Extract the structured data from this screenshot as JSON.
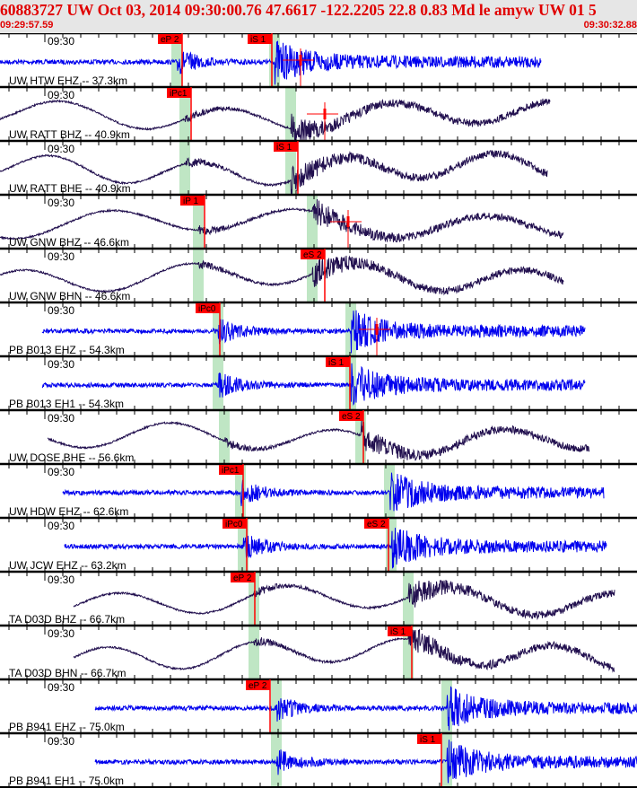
{
  "header": {
    "title": "60883727 UW Oct 03, 2014 09:30:00.76   47.6617 -122.2205 22.8 0.83 Md le amyw UW 01   5",
    "start_time": "09:29:57.59",
    "end_time": "09:30:32.88"
  },
  "colors": {
    "high_freq": "#0000ee",
    "broadband": "#22104f",
    "pick": "#ff0000",
    "window": "#bfe6c4",
    "header_bg": "#e6e6e6"
  },
  "time_label": "09:30",
  "panels": [
    {
      "station": "UW HTW EHZ -- 37.3km",
      "type": "hf",
      "picks": [
        "eP 2",
        "iS 1"
      ]
    },
    {
      "station": "UW RATT BHZ -- 40.9km",
      "type": "bb",
      "picks": [
        "iPc1"
      ]
    },
    {
      "station": "UW RATT BHE -- 40.9km",
      "type": "bb",
      "picks": [
        "iS 1"
      ]
    },
    {
      "station": "UW GNW BHZ -- 46.6km",
      "type": "bb",
      "picks": [
        "iP 1"
      ]
    },
    {
      "station": "UW GNW BHN -- 46.6km",
      "type": "bb",
      "picks": [
        "eS 2"
      ]
    },
    {
      "station": "PB B013 EHZ -- 54.3km",
      "type": "hf",
      "picks": [
        "iPc0"
      ]
    },
    {
      "station": "PB B013 EH1 -- 54.3km",
      "type": "hf",
      "picks": [
        "iS 1"
      ]
    },
    {
      "station": "UW DOSE BHE -- 56.6km",
      "type": "bb",
      "picks": [
        "eS 2"
      ]
    },
    {
      "station": "UW HDW EHZ -- 62.6km",
      "type": "hf",
      "picks": [
        "iPc1"
      ]
    },
    {
      "station": "UW JCW EHZ -- 63.2km",
      "type": "hf",
      "picks": [
        "iPc0",
        "eS 2"
      ]
    },
    {
      "station": "TA D03D BHZ -- 66.7km",
      "type": "bb",
      "picks": [
        "eP 2"
      ]
    },
    {
      "station": "TA D03D BHN -- 66.7km",
      "type": "bb",
      "picks": [
        "iS 1"
      ]
    },
    {
      "station": "PB B941 EHZ -- 75.0km",
      "type": "hf",
      "picks": [
        "eP 2"
      ]
    },
    {
      "station": "PB B941 EH1 -- 75.0km",
      "type": "hf",
      "picks": [
        "iS 1"
      ]
    }
  ]
}
